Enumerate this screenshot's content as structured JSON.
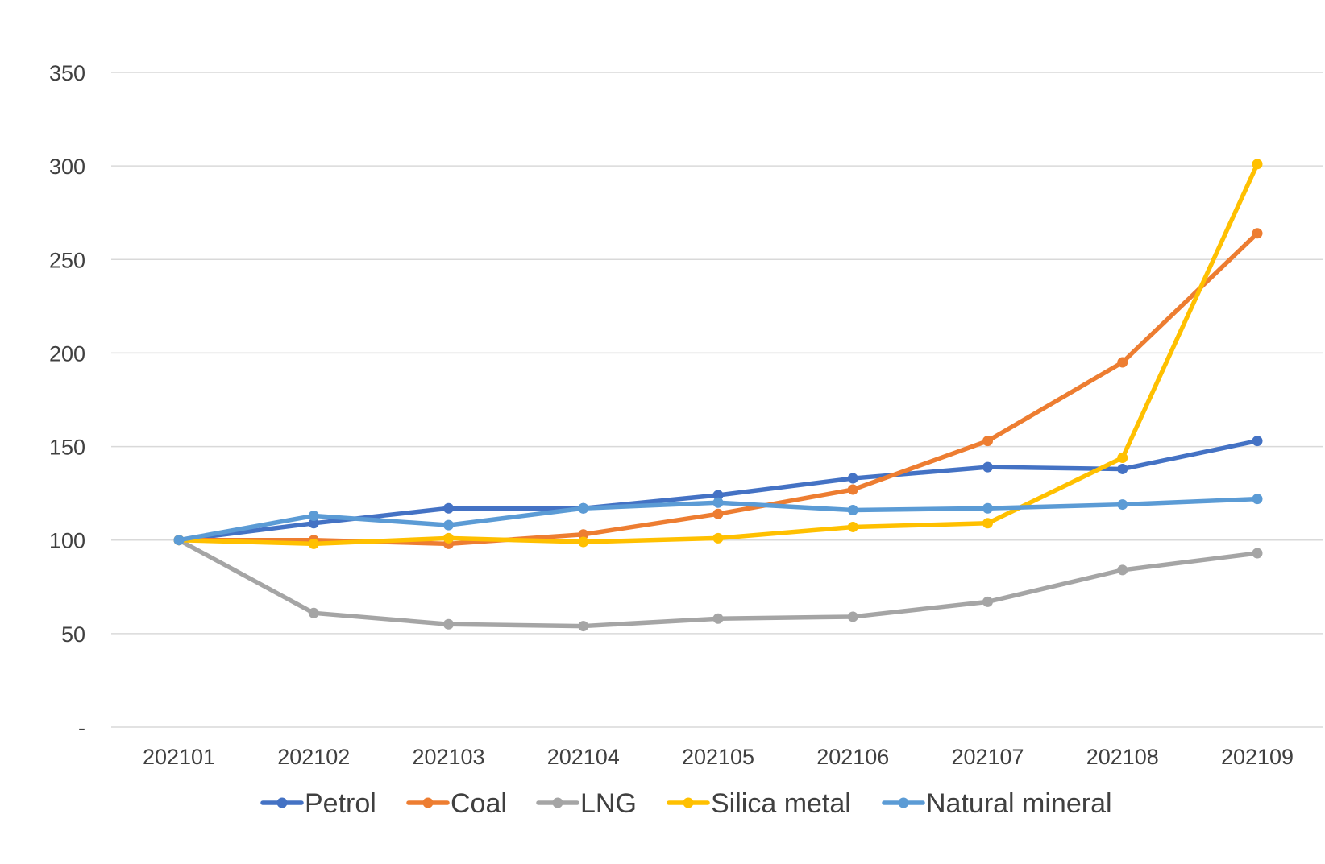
{
  "chart_data": {
    "type": "line",
    "categories": [
      "202101",
      "202102",
      "202103",
      "202104",
      "202105",
      "202106",
      "202107",
      "202108",
      "202109"
    ],
    "ylim": [
      0,
      350
    ],
    "yticks": [
      {
        "value": 0,
        "label": "-"
      },
      {
        "value": 50,
        "label": "50"
      },
      {
        "value": 100,
        "label": "100"
      },
      {
        "value": 150,
        "label": "150"
      },
      {
        "value": 200,
        "label": "200"
      },
      {
        "value": 250,
        "label": "250"
      },
      {
        "value": 300,
        "label": "300"
      },
      {
        "value": 350,
        "label": "350"
      }
    ],
    "grid": true,
    "legend_position": "bottom",
    "series": [
      {
        "name": "Petrol",
        "color": "#4472c4",
        "values": [
          100,
          109,
          117,
          117,
          124,
          133,
          139,
          138,
          153
        ]
      },
      {
        "name": "Coal",
        "color": "#ed7d31",
        "values": [
          100,
          100,
          98,
          103,
          114,
          127,
          153,
          195,
          264
        ]
      },
      {
        "name": "LNG",
        "color": "#a5a5a5",
        "values": [
          100,
          61,
          55,
          54,
          58,
          59,
          67,
          84,
          93
        ]
      },
      {
        "name": "Silica metal",
        "color": "#ffc000",
        "values": [
          100,
          98,
          101,
          99,
          101,
          107,
          109,
          144,
          301
        ]
      },
      {
        "name": "Natural mineral",
        "color": "#5b9bd5",
        "values": [
          100,
          113,
          108,
          117,
          120,
          116,
          117,
          119,
          122
        ]
      }
    ]
  }
}
